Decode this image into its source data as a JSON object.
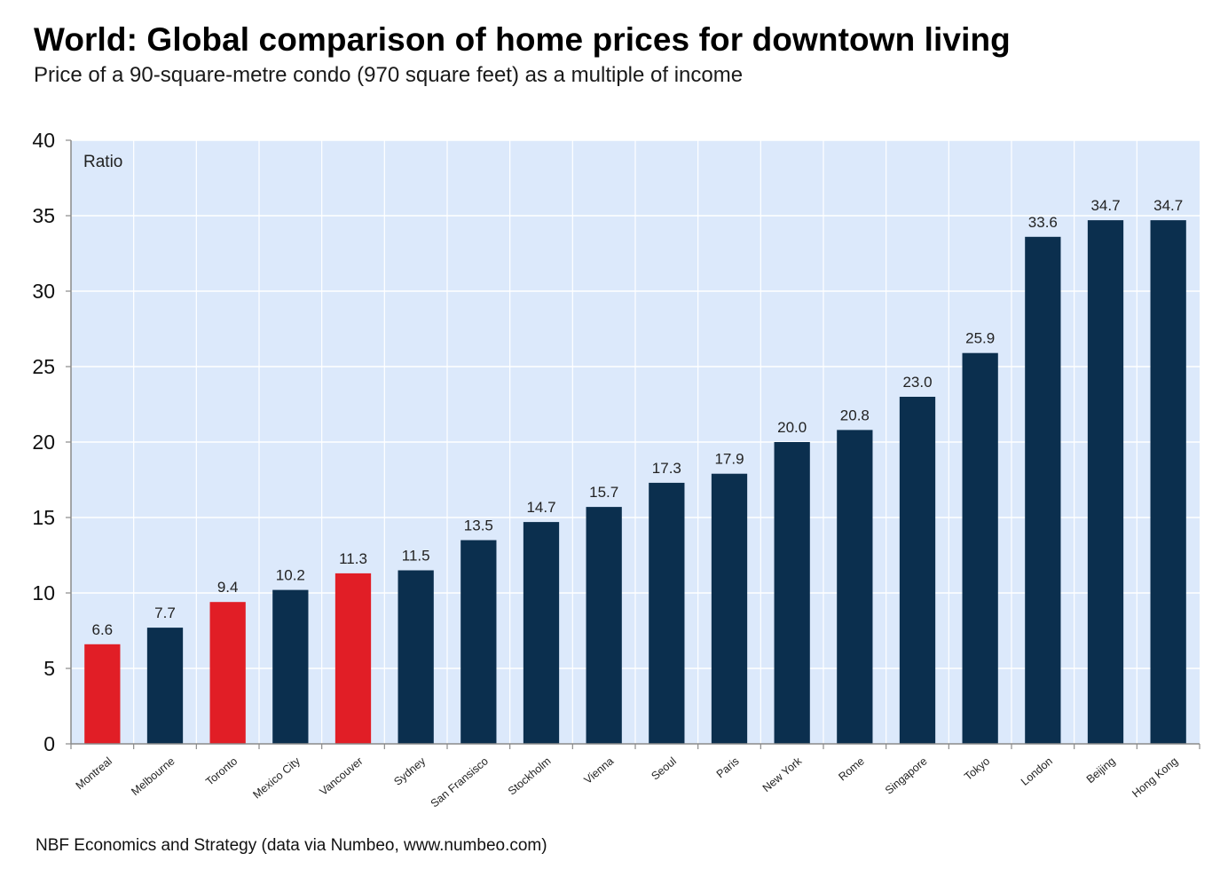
{
  "header": {
    "title": "World: Global comparison of home prices for downtown living",
    "subtitle": "Price of a 90-square-metre condo (970 square feet) as a multiple of income"
  },
  "footer": {
    "source": "NBF Economics and Strategy (data via Numbeo, www.numbeo.com)"
  },
  "colors": {
    "plot_background": "#dce9fb",
    "gridline": "#ffffff",
    "bar_default": "#0b2f4e",
    "bar_highlight": "#e11e26",
    "axis": "#8a8a8a",
    "text": "#222222"
  },
  "chart_data": {
    "type": "bar",
    "title": "World: Global comparison of home prices for downtown living",
    "subtitle": "Price of a 90-square-metre condo (970 square feet) as a multiple of income",
    "xlabel": "",
    "ylabel": "Ratio",
    "ylim": [
      0,
      40
    ],
    "yticks": [
      0,
      5,
      10,
      15,
      20,
      25,
      30,
      35,
      40
    ],
    "grid": true,
    "legend": "none",
    "categories": [
      "Montreal",
      "Melbourne",
      "Toronto",
      "Mexico City",
      "Vancouver",
      "Sydney",
      "San Fransisco",
      "Stockholm",
      "Vienna",
      "Seoul",
      "Paris",
      "New York",
      "Rome",
      "Singapore",
      "Tokyo",
      "London",
      "Beijing",
      "Hong Kong"
    ],
    "values": [
      6.6,
      7.7,
      9.4,
      10.2,
      11.3,
      11.5,
      13.5,
      14.7,
      15.7,
      17.3,
      17.9,
      20.0,
      20.8,
      23.0,
      25.9,
      33.6,
      34.7,
      34.7
    ],
    "data_labels": [
      "6.6",
      "7.7",
      "9.4",
      "10.2",
      "11.3",
      "11.5",
      "13.5",
      "14.7",
      "15.7",
      "17.3",
      "17.9",
      "20.0",
      "20.8",
      "23.0",
      "25.9",
      "33.6",
      "34.7",
      "34.7"
    ],
    "highlighted": [
      "Montreal",
      "Toronto",
      "Vancouver"
    ],
    "source": "NBF Economics and Strategy (data via Numbeo, www.numbeo.com)"
  }
}
